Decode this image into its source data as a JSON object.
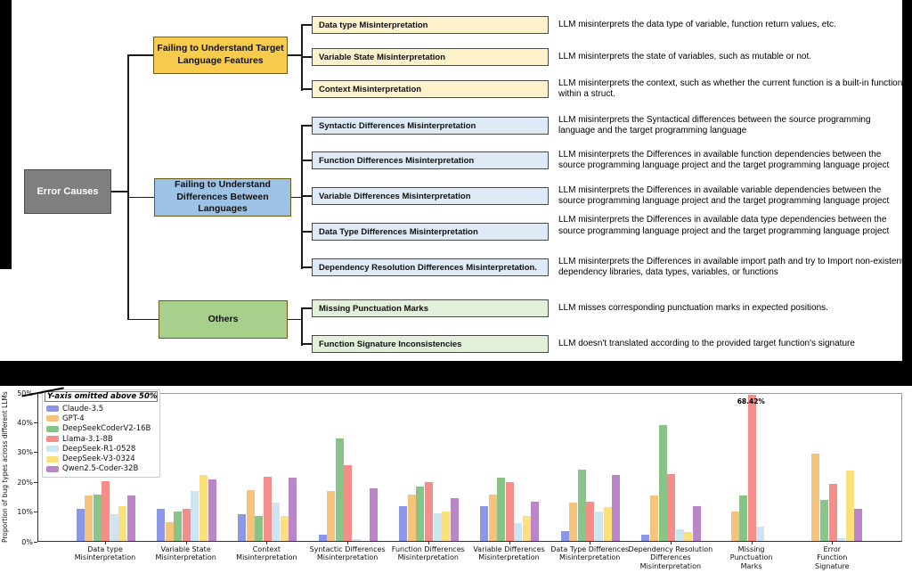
{
  "figure": {
    "root_label": "Error Causes",
    "categories": [
      {
        "label": "Failing to Understand Target Language Features",
        "color": "#F8CB4C",
        "leaf_color": "#FDF2CC",
        "children": [
          {
            "label": "Data type Misinterpretation",
            "desc": "LLM misinterprets the data type of variable, function return values, etc."
          },
          {
            "label": "Variable State Misinterpretation",
            "desc": "LLM misinterprets the state of variables, such as mutable or not."
          },
          {
            "label": "Context Misinterpretation",
            "desc": "LLM misinterprets the context, such as whether the current function is a built-in function within a struct."
          }
        ]
      },
      {
        "label": "Failing to Understand Differences Between Languages",
        "color": "#9CC2E5",
        "leaf_color": "#DEEAF6",
        "children": [
          {
            "label": "Syntactic Differences Misinterpretation",
            "desc": "LLM misinterprets the Syntactical differences between the source programming language and the target programming language"
          },
          {
            "label": "Function Differences Misinterpretation",
            "desc": "LLM misinterprets the Differences in available function dependencies between the source programming language project and the target programming language project"
          },
          {
            "label": "Variable Differences Misinterpretation",
            "desc": "LLM misinterprets the Differences in available variable dependencies between the source programming language project and the target programming language project"
          },
          {
            "label": "Data Type Differences Misinterpretation",
            "desc": "LLM misinterprets the Differences in available data type dependencies between the source programming language project and the target programming language project"
          },
          {
            "label": "Dependency Resolution Differences Misinterpretation.",
            "desc": "LLM misinterprets the Differences in available import path and try to Import non-existent dependency libraries, data types, variables, or functions"
          }
        ]
      },
      {
        "label": "Others",
        "color": "#A8D08D",
        "leaf_color": "#E2EFD9",
        "children": [
          {
            "label": "Missing Punctuation Marks",
            "desc": "LLM misses corresponding punctuation marks in expected positions."
          },
          {
            "label": "Function Signature Inconsistencies",
            "desc": "LLM doesn't translated according to the provided target function's signature"
          }
        ]
      }
    ]
  },
  "chart_data": {
    "type": "bar",
    "title": "",
    "xlabel": "",
    "ylabel": "Proportion of bug types across different LLMs",
    "ylim": [
      0,
      50
    ],
    "yticks": [
      "0%",
      "10%",
      "20%",
      "30%",
      "40%",
      "50%"
    ],
    "grid": false,
    "legend_title": "Y-axis omitted above 50%",
    "legend_position": "upper-left",
    "categories": [
      "Data type\nMisinterpretation",
      "Variable State\nMisinterpretation",
      "Context\nMisinterpretation",
      "Syntactic Differences\nMisinterpretation",
      "Function Differences\nMisinterpretation",
      "Variable Differences\nMisinterpretation",
      "Data Type Differences\nMisinterpretation",
      "Dependency Resolution\nDifferences\nMisinterpretation",
      "Missing\nPunctuation\nMarks",
      "Error\nFunction\nSignature"
    ],
    "series": [
      {
        "name": "Claude-3.5",
        "color": "#8D97E8",
        "values": [
          11,
          11,
          9,
          2,
          12,
          12,
          3.5,
          2,
          0,
          0
        ]
      },
      {
        "name": "GPT-4",
        "color": "#F6C37B",
        "values": [
          15.5,
          6.5,
          17.5,
          17,
          16,
          16,
          13,
          15.5,
          10,
          30
        ]
      },
      {
        "name": "DeepSeekCoderV2-16B",
        "color": "#88C488",
        "values": [
          16,
          10,
          8.5,
          35,
          18.5,
          21.5,
          24.5,
          39.5,
          15.5,
          14
        ]
      },
      {
        "name": "Llama-3.1-8B",
        "color": "#F58E8A",
        "values": [
          20.5,
          11,
          22,
          26,
          20,
          20,
          13.5,
          23,
          68.42,
          19.5
        ]
      },
      {
        "name": "DeepSeek-R1-0528",
        "color": "#CDE4F2",
        "values": [
          9,
          17,
          13,
          0.5,
          9.5,
          6,
          10,
          4,
          5,
          1
        ]
      },
      {
        "name": "DeepSeek-V3-0324",
        "color": "#FBE07E",
        "values": [
          12,
          22.5,
          8.5,
          0,
          10,
          8.5,
          11.5,
          3,
          0,
          24
        ]
      },
      {
        "name": "Qwen2.5-Coder-32B",
        "color": "#BB86C9",
        "values": [
          15.5,
          21,
          21.5,
          18,
          14.5,
          13.5,
          22.5,
          12,
          0,
          11
        ]
      }
    ],
    "annotations": [
      {
        "text": "68.42%",
        "series": "Llama-3.1-8B",
        "category_index": 8,
        "note": "bar exceeds axis; y-axis omitted above 50%"
      }
    ]
  }
}
